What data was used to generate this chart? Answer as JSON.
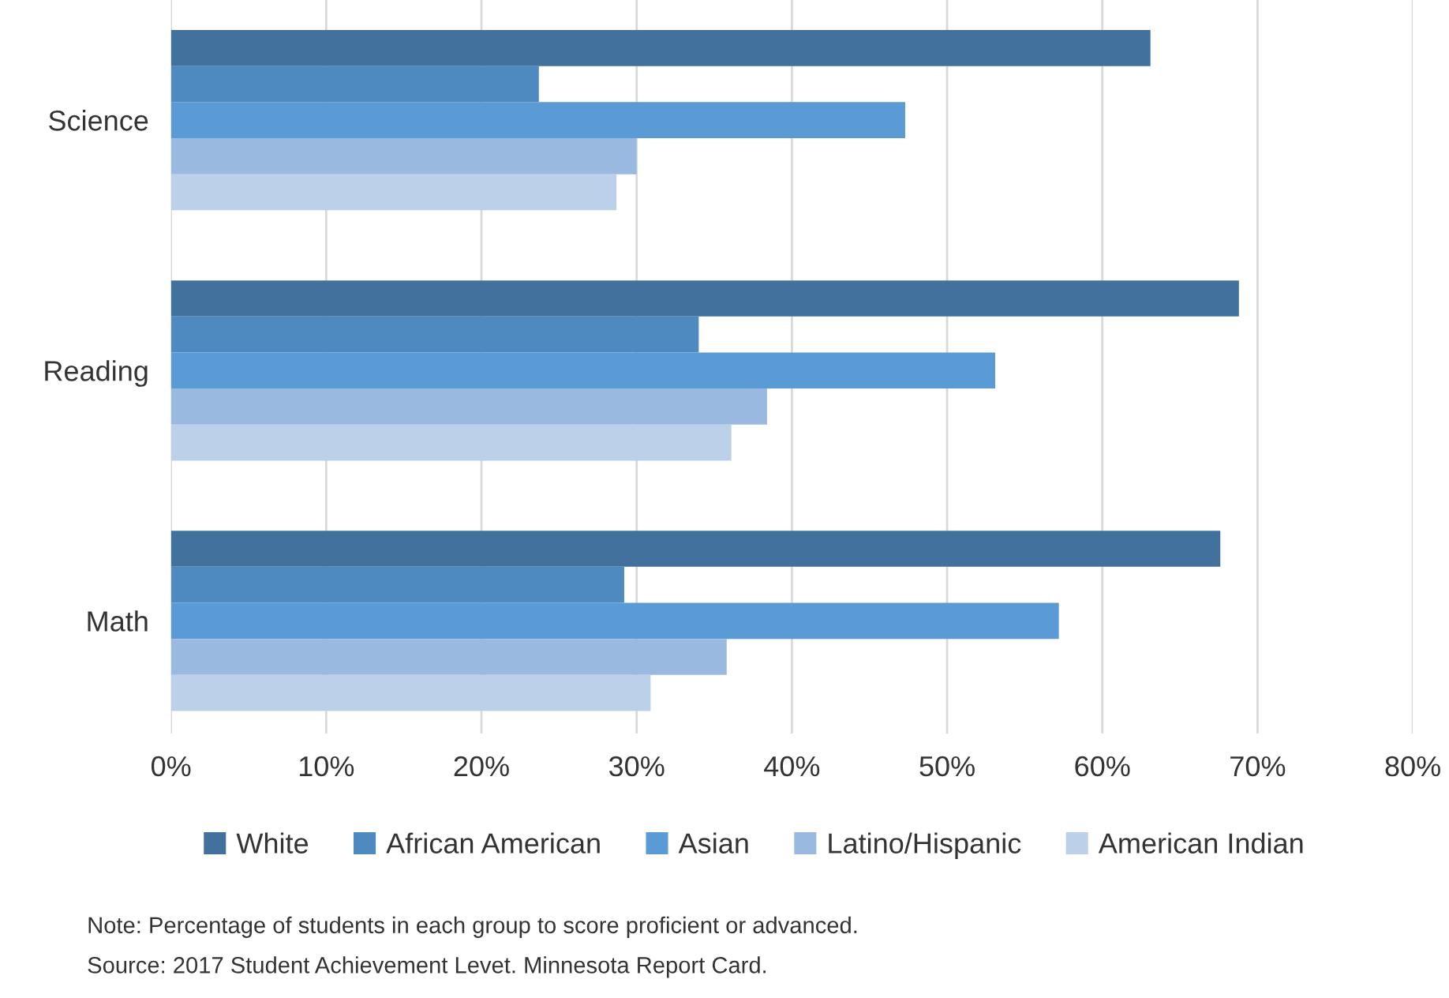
{
  "chart_data": {
    "type": "bar",
    "orientation": "horizontal",
    "categories": [
      "Science",
      "Reading",
      "Math"
    ],
    "series": [
      {
        "name": "White",
        "color": "#41719c",
        "values": [
          63.1,
          68.8,
          67.6
        ]
      },
      {
        "name": "African American",
        "color": "#4e89bf",
        "values": [
          23.7,
          34.0,
          29.2
        ]
      },
      {
        "name": "Asian",
        "color": "#5b9bd5",
        "values": [
          47.3,
          53.1,
          57.2
        ]
      },
      {
        "name": "Latino/Hispanic",
        "color": "#9ab9e0",
        "values": [
          30.0,
          38.4,
          35.8
        ]
      },
      {
        "name": "American Indian",
        "color": "#bdd0ea",
        "values": [
          28.7,
          36.1,
          30.9
        ]
      }
    ],
    "xlim": [
      0,
      80
    ],
    "xticks": [
      {
        "value": 0,
        "label": "0%"
      },
      {
        "value": 10,
        "label": "10%"
      },
      {
        "value": 20,
        "label": "20%"
      },
      {
        "value": 30,
        "label": "30%"
      },
      {
        "value": 40,
        "label": "40%"
      },
      {
        "value": 50,
        "label": "50%"
      },
      {
        "value": 60,
        "label": "60%"
      },
      {
        "value": 70,
        "label": "70%"
      },
      {
        "value": 80,
        "label": "80%"
      }
    ],
    "grid": "x",
    "legend": "bottom",
    "annotations": [
      "Note: Percentage of students in each group to score proficient or advanced.",
      "Source: 2017 Student Achievement Levet. Minnesota Report Card."
    ]
  }
}
